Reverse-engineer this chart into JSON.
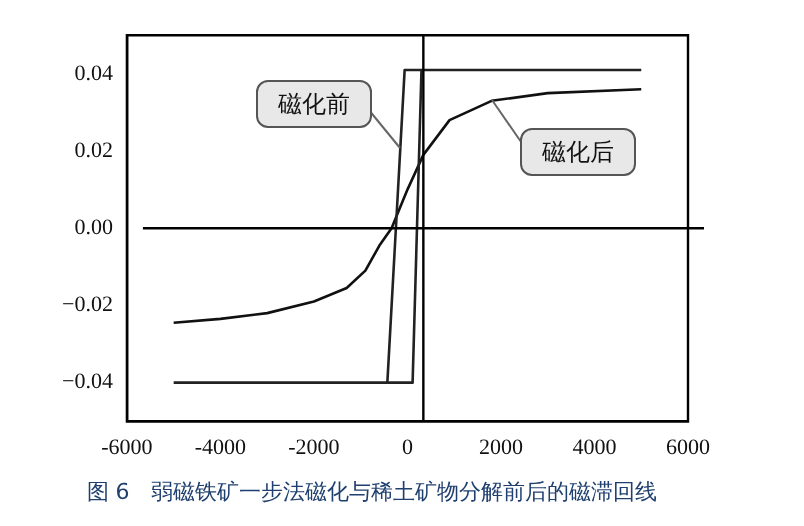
{
  "chart_data": {
    "type": "line",
    "title": "图 6　弱磁铁矿一步法磁化与稀土矿物分解前后的磁滞回线",
    "series": [
      {
        "name": "磁化前",
        "color": "#222222",
        "x": [
          5000,
          300,
          -60,
          -430,
          -5000
        ],
        "values": [
          0.041,
          0.041,
          0.041,
          -0.04,
          -0.04
        ]
      },
      {
        "color": "#222222",
        "x": [
          -430,
          110,
          300
        ],
        "values": [
          -0.04,
          -0.04,
          0.041
        ]
      },
      {
        "name": "磁化后",
        "color": "#111111",
        "x": [
          -5000,
          -4000,
          -3000,
          -2000,
          -1300,
          -900,
          -600,
          -340,
          0,
          340,
          900,
          1800,
          3000,
          5000
        ],
        "values": [
          -0.0245,
          -0.0235,
          -0.022,
          -0.019,
          -0.0155,
          -0.011,
          -0.0045,
          0,
          0.01,
          0.019,
          0.028,
          0.033,
          0.035,
          0.036
        ]
      }
    ],
    "xlim": [
      -6000,
      6000
    ],
    "xticks": [
      -6000,
      -4000,
      -2000,
      0,
      2000,
      4000,
      6000
    ],
    "ylim": [
      -0.05,
      0.05
    ],
    "yticks": [
      {
        "value": -0.04,
        "label": "−0.04"
      },
      {
        "value": -0.02,
        "label": "−0.02"
      },
      {
        "value": 0,
        "label": "0.00"
      },
      {
        "value": 0.02,
        "label": "0.02"
      },
      {
        "value": 0.04,
        "label": "0.04"
      }
    ],
    "ref_lines": [
      {
        "axis": "y",
        "value": 0,
        "color": "#000000"
      },
      {
        "axis": "x",
        "value": 340,
        "color": "#000000"
      }
    ],
    "legend": false,
    "grid": false
  }
}
